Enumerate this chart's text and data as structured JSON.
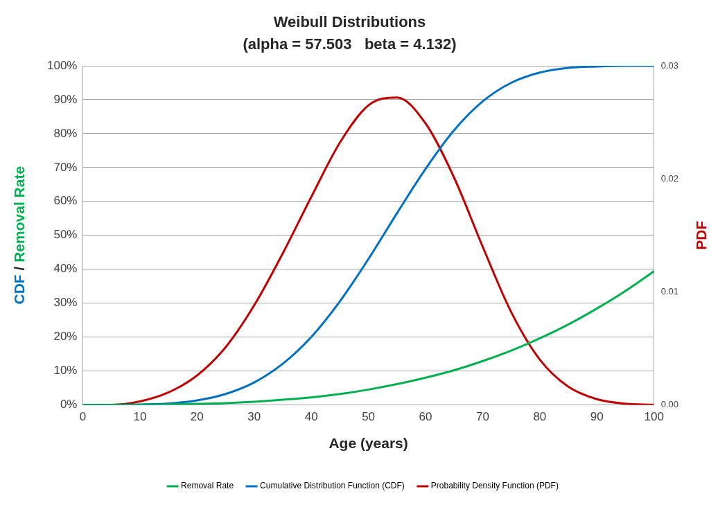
{
  "chart_data": {
    "type": "line",
    "title": "Weibull Distributions",
    "subtitle": "(alpha = 57.503   beta = 4.132)",
    "xlabel": "Age (years)",
    "ylabel": "CDF / Removal Rate",
    "y2label": "PDF",
    "x": [
      0,
      5,
      10,
      15,
      20,
      25,
      30,
      35,
      40,
      45,
      50,
      55,
      60,
      65,
      70,
      75,
      80,
      85,
      90,
      95,
      100
    ],
    "series": [
      {
        "name": "Removal Rate",
        "color": "#00b050",
        "values": [
          0,
          0,
          0,
          0.1,
          0.3,
          0.5,
          0.9,
          1.5,
          2.2,
          3.2,
          4.5,
          6.1,
          8.0,
          10.2,
          12.9,
          16.0,
          19.6,
          23.7,
          28.4,
          33.6,
          39.4
        ]
      },
      {
        "name": "Cumulative Distribution Function (CDF)",
        "color": "#0070c0",
        "values": [
          0,
          0,
          0.1,
          0.4,
          1.3,
          3.2,
          6.6,
          12.1,
          20.0,
          30.5,
          43.0,
          56.5,
          69.6,
          81.0,
          89.5,
          95.0,
          98.0,
          99.4,
          99.8,
          100,
          100
        ]
      },
      {
        "name": "Probability Density Function (PDF)",
        "color": "#c00000",
        "axis": "y2",
        "values": [
          0,
          0,
          0.0003,
          0.0011,
          0.0026,
          0.0051,
          0.0088,
          0.0134,
          0.0184,
          0.0232,
          0.0265,
          0.0272,
          0.0249,
          0.0201,
          0.014,
          0.0082,
          0.004,
          0.0016,
          0.0005,
          0.0001,
          0
        ]
      }
    ],
    "xlim": [
      0,
      100
    ],
    "xticks": [
      0,
      10,
      20,
      30,
      40,
      50,
      60,
      70,
      80,
      90,
      100
    ],
    "ylim": [
      0,
      100
    ],
    "yticks": [
      {
        "value": 0,
        "label": "0%"
      },
      {
        "value": 10,
        "label": "10%"
      },
      {
        "value": 20,
        "label": "20%"
      },
      {
        "value": 30,
        "label": "30%"
      },
      {
        "value": 40,
        "label": "40%"
      },
      {
        "value": 50,
        "label": "50%"
      },
      {
        "value": 60,
        "label": "60%"
      },
      {
        "value": 70,
        "label": "70%"
      },
      {
        "value": 80,
        "label": "80%"
      },
      {
        "value": 90,
        "label": "90%"
      },
      {
        "value": 100,
        "label": "100%"
      }
    ],
    "y2lim": [
      0,
      0.03
    ],
    "y2ticks": [
      {
        "value": 0,
        "label": "0.00"
      },
      {
        "value": 0.01,
        "label": "0.01"
      },
      {
        "value": 0.02,
        "label": "0.02"
      },
      {
        "value": 0.03,
        "label": "0.03"
      }
    ],
    "grid": "y",
    "legend": "bottom",
    "marker": "none",
    "line_style": "solid"
  }
}
